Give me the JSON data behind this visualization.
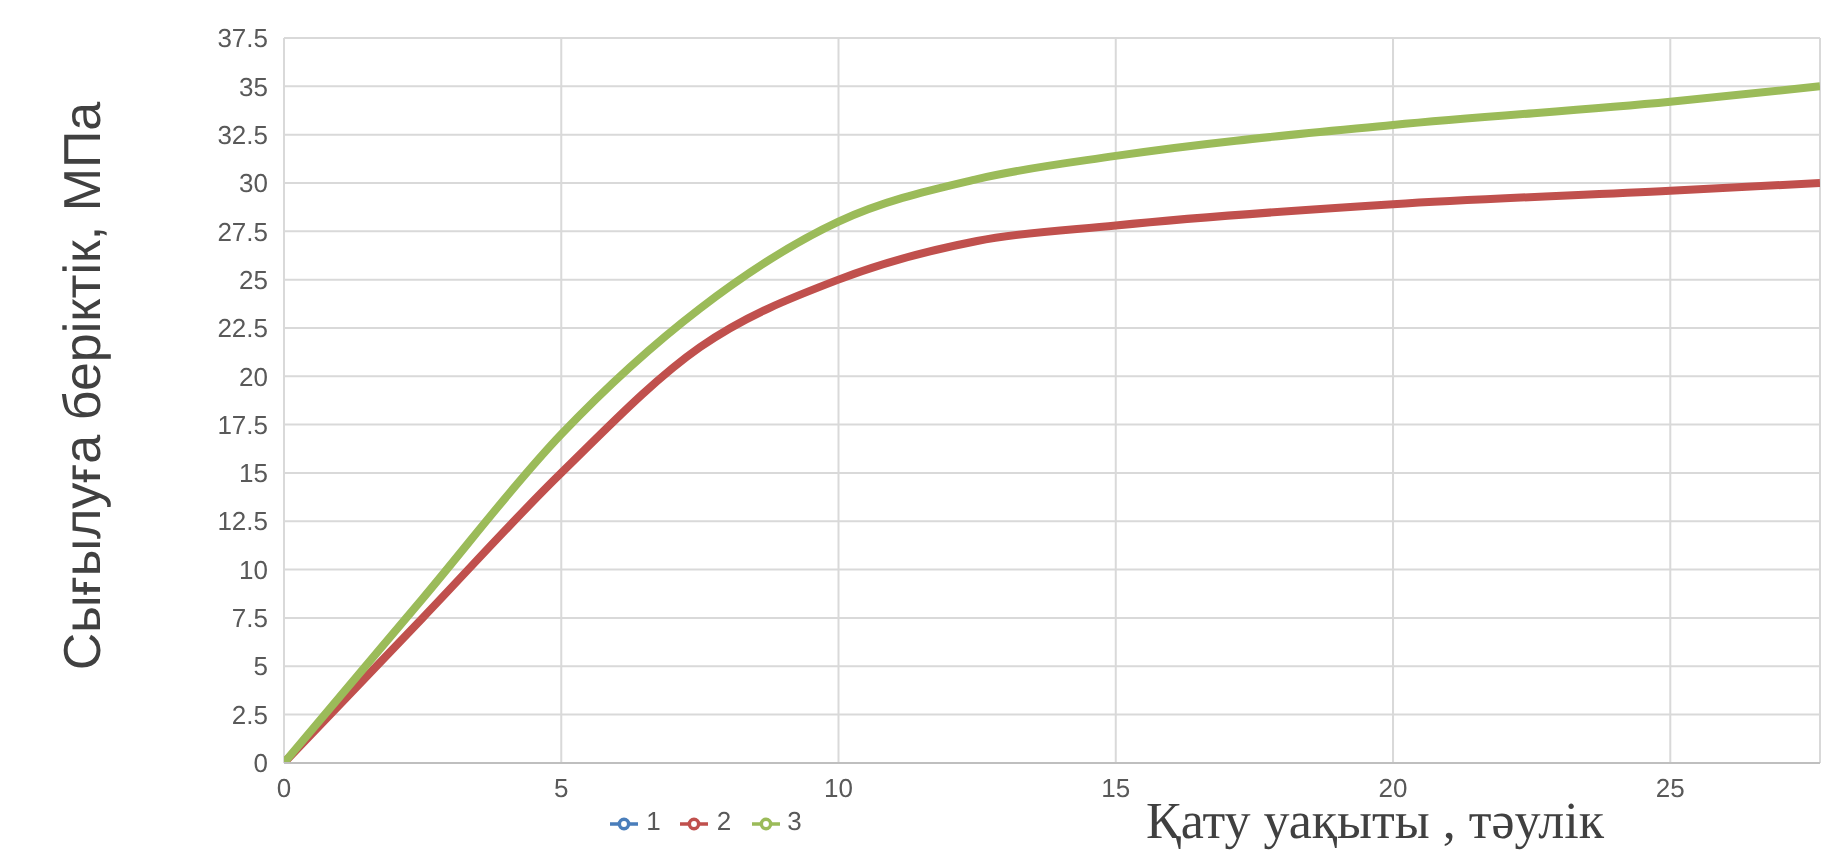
{
  "chart_data": {
    "type": "line",
    "xlabel": "Қату уақыты , тәулік",
    "ylabel": "Сығылуға беріктік, МПа",
    "x": [
      0,
      2.5,
      5,
      7.5,
      10,
      12.5,
      15,
      20,
      25,
      27.7
    ],
    "series": [
      {
        "name": "1",
        "color": "#4a7ebb",
        "values": [
          null,
          null,
          null,
          null,
          null,
          null,
          null,
          null,
          null,
          null
        ]
      },
      {
        "name": "2",
        "color": "#c0504d",
        "values": [
          0,
          7.5,
          15,
          21.5,
          25,
          27,
          27.8,
          28.9,
          29.6,
          30
        ]
      },
      {
        "name": "3",
        "color": "#9bbb59",
        "values": [
          0,
          8.5,
          17,
          23.5,
          28,
          30.2,
          31.4,
          33,
          34.2,
          35
        ]
      }
    ],
    "xlim": [
      0,
      27.7
    ],
    "xticks": [
      0,
      5,
      10,
      15,
      20,
      25
    ],
    "ylim": [
      0,
      37.5
    ],
    "yticks": [
      0,
      2.5,
      5,
      7.5,
      10,
      12.5,
      15,
      17.5,
      20,
      22.5,
      25,
      27.5,
      30,
      32.5,
      35,
      37.5
    ],
    "grid": true,
    "legend": "bottom",
    "marker": "none",
    "line_style": "solid"
  }
}
